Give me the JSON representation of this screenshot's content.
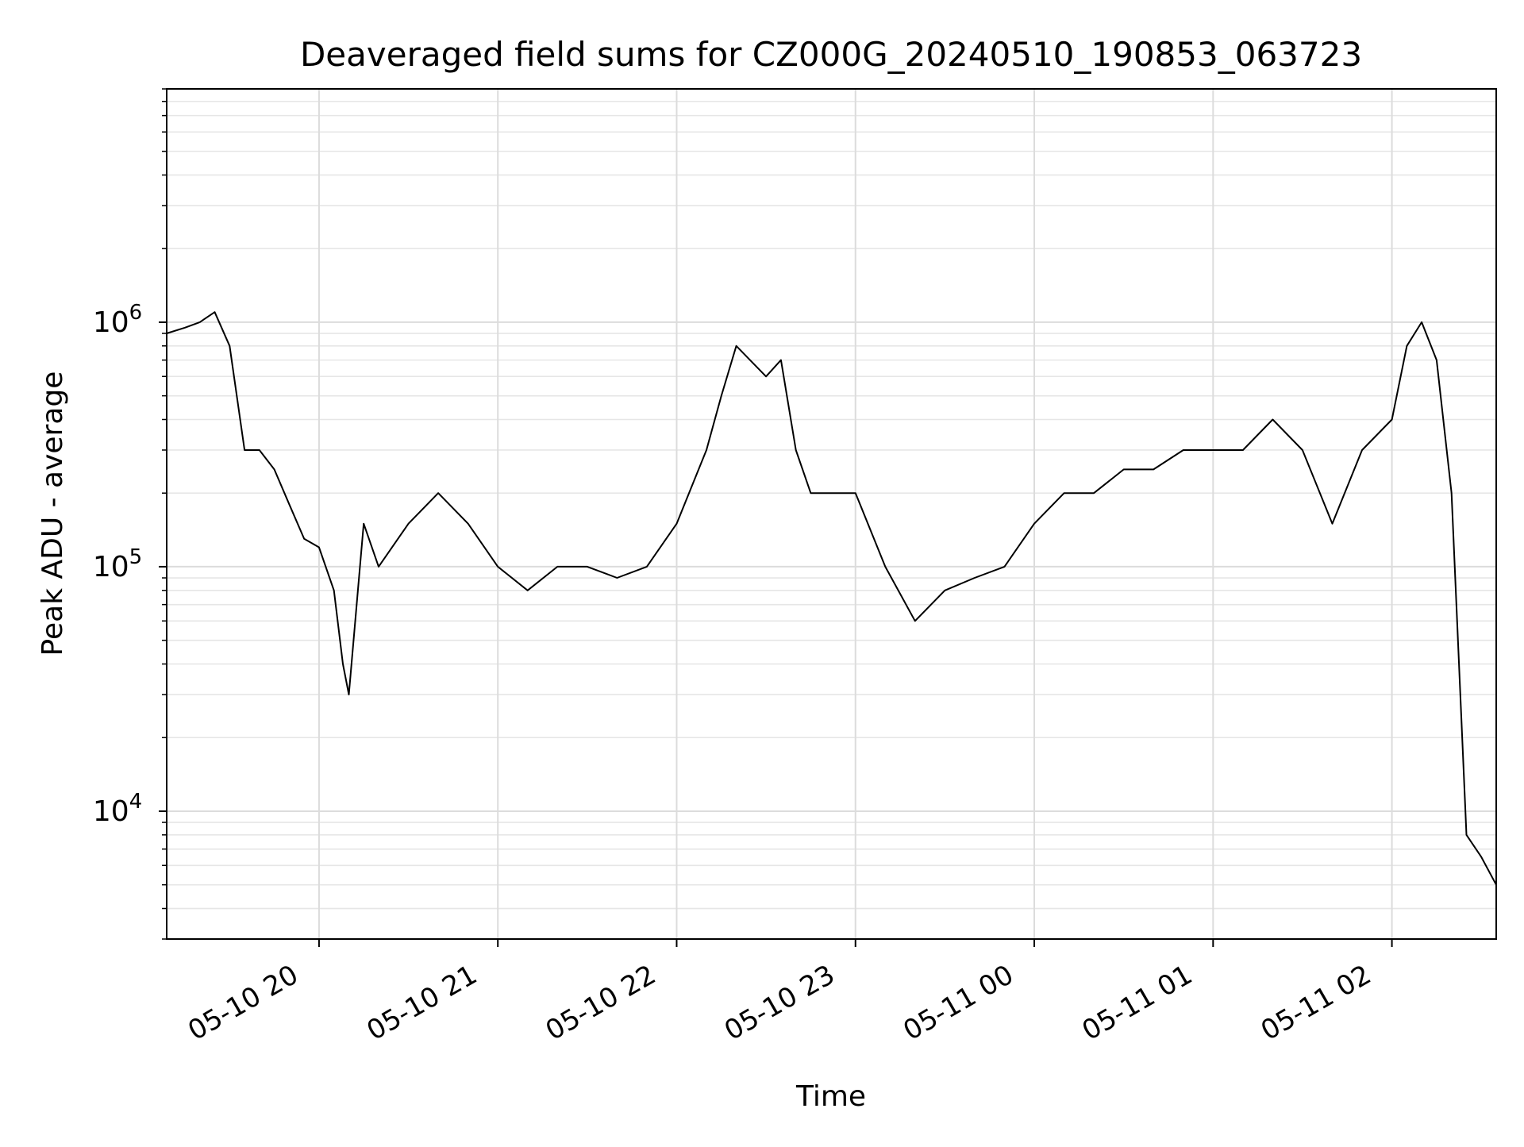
{
  "chart_data": {
    "type": "line",
    "title": "Deaveraged field sums for CZ000G_20240510_190853_063723",
    "xlabel": "Time",
    "ylabel": "Peak ADU - average",
    "yscale": "log",
    "ylim": [
      3000,
      9000000
    ],
    "xlim": [
      "2024-05-10 19:08:53",
      "2024-05-11 02:35:00"
    ],
    "x_ticks": [
      {
        "time": "2024-05-10 20:00",
        "label": "05-10 20"
      },
      {
        "time": "2024-05-10 21:00",
        "label": "05-10 21"
      },
      {
        "time": "2024-05-10 22:00",
        "label": "05-10 22"
      },
      {
        "time": "2024-05-10 23:00",
        "label": "05-10 23"
      },
      {
        "time": "2024-05-11 00:00",
        "label": "05-11 00"
      },
      {
        "time": "2024-05-11 01:00",
        "label": "05-11 01"
      },
      {
        "time": "2024-05-11 02:00",
        "label": "05-11 02"
      }
    ],
    "y_ticks": [
      {
        "value": 10000,
        "base": "10",
        "exp": "4"
      },
      {
        "value": 100000,
        "base": "10",
        "exp": "5"
      },
      {
        "value": 1000000,
        "base": "10",
        "exp": "6"
      }
    ],
    "grid": true,
    "legend": "none",
    "line_color": "#000000",
    "series": [
      {
        "x": [
          "2024-05-10 19:08:53",
          "2024-05-10 19:15",
          "2024-05-10 19:20",
          "2024-05-10 19:25",
          "2024-05-10 19:30",
          "2024-05-10 19:35",
          "2024-05-10 19:40",
          "2024-05-10 19:45",
          "2024-05-10 19:50",
          "2024-05-10 19:55",
          "2024-05-10 20:00",
          "2024-05-10 20:05",
          "2024-05-10 20:08",
          "2024-05-10 20:10",
          "2024-05-10 20:15",
          "2024-05-10 20:20",
          "2024-05-10 20:30",
          "2024-05-10 20:40",
          "2024-05-10 20:50",
          "2024-05-10 21:00",
          "2024-05-10 21:10",
          "2024-05-10 21:20",
          "2024-05-10 21:30",
          "2024-05-10 21:40",
          "2024-05-10 21:50",
          "2024-05-10 22:00",
          "2024-05-10 22:10",
          "2024-05-10 22:15",
          "2024-05-10 22:20",
          "2024-05-10 22:30",
          "2024-05-10 22:35",
          "2024-05-10 22:40",
          "2024-05-10 22:45",
          "2024-05-10 22:50",
          "2024-05-10 23:00",
          "2024-05-10 23:10",
          "2024-05-10 23:20",
          "2024-05-10 23:30",
          "2024-05-10 23:40",
          "2024-05-10 23:50",
          "2024-05-11 00:00",
          "2024-05-11 00:10",
          "2024-05-11 00:20",
          "2024-05-11 00:30",
          "2024-05-11 00:40",
          "2024-05-11 00:50",
          "2024-05-11 01:00",
          "2024-05-11 01:10",
          "2024-05-11 01:20",
          "2024-05-11 01:30",
          "2024-05-11 01:40",
          "2024-05-11 01:50",
          "2024-05-11 02:00",
          "2024-05-11 02:05",
          "2024-05-11 02:10",
          "2024-05-11 02:15",
          "2024-05-11 02:20",
          "2024-05-11 02:25",
          "2024-05-11 02:30",
          "2024-05-11 02:35"
        ],
        "y": [
          900000,
          950000,
          1000000,
          1100000,
          800000,
          300000,
          300000,
          250000,
          180000,
          130000,
          120000,
          80000,
          40000,
          30000,
          150000,
          100000,
          150000,
          200000,
          150000,
          100000,
          80000,
          100000,
          100000,
          90000,
          100000,
          150000,
          300000,
          500000,
          800000,
          600000,
          700000,
          300000,
          200000,
          200000,
          200000,
          100000,
          60000,
          80000,
          90000,
          100000,
          150000,
          200000,
          200000,
          250000,
          250000,
          300000,
          300000,
          300000,
          400000,
          300000,
          150000,
          300000,
          400000,
          800000,
          1000000,
          700000,
          200000,
          8000,
          6500,
          5000
        ]
      }
    ]
  }
}
